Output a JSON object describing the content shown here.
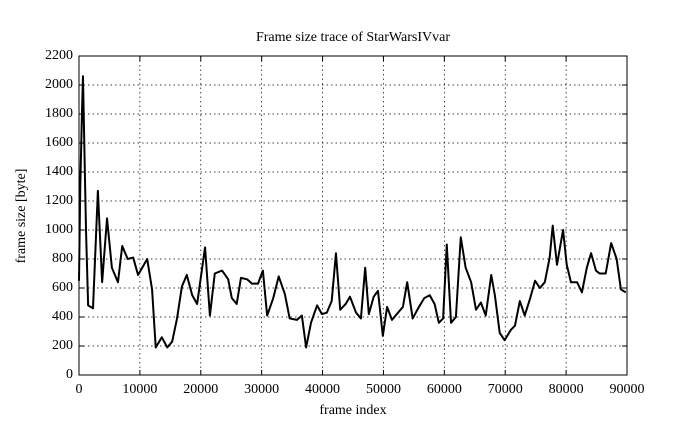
{
  "chart_data": {
    "type": "line",
    "title": "Frame size trace of StarWarsIVvar",
    "x_label": "frame index",
    "y_label": "frame size [byte]",
    "x": [
      0,
      200,
      500,
      650,
      1150,
      1500,
      2300,
      3100,
      3800,
      4600,
      5400,
      6400,
      7100,
      8000,
      8900,
      9700,
      11200,
      12000,
      12600,
      13600,
      14500,
      15300,
      16100,
      16900,
      17700,
      18600,
      19400,
      20700,
      21500,
      22300,
      23500,
      24500,
      25100,
      25900,
      26600,
      27600,
      28400,
      29400,
      30200,
      30900,
      31900,
      32800,
      33800,
      34600,
      35800,
      36600,
      37300,
      38100,
      39100,
      39900,
      40700,
      41500,
      42200,
      42900,
      43800,
      44500,
      45500,
      46300,
      47000,
      47600,
      48400,
      49100,
      49900,
      50600,
      51400,
      52400,
      53200,
      53900,
      54800,
      55700,
      56700,
      57600,
      58400,
      59100,
      59800,
      60400,
      61100,
      61900,
      62700,
      63500,
      64400,
      65200,
      66000,
      66800,
      67700,
      68300,
      69100,
      69900,
      70900,
      71600,
      72400,
      73200,
      74100,
      74900,
      75700,
      76500,
      77300,
      77800,
      78500,
      79500,
      80100,
      80800,
      81800,
      82600,
      83400,
      84100,
      84900,
      85500,
      86500,
      87400,
      88300,
      89000,
      89800
    ],
    "values": [
      650,
      1280,
      1830,
      2060,
      1000,
      480,
      460,
      1270,
      640,
      1080,
      740,
      640,
      890,
      800,
      810,
      690,
      800,
      590,
      190,
      260,
      190,
      230,
      390,
      610,
      690,
      550,
      490,
      880,
      410,
      700,
      720,
      660,
      530,
      490,
      670,
      660,
      630,
      630,
      720,
      410,
      530,
      680,
      560,
      390,
      380,
      410,
      190,
      360,
      480,
      420,
      430,
      510,
      840,
      450,
      490,
      540,
      430,
      390,
      740,
      420,
      540,
      580,
      270,
      470,
      380,
      430,
      470,
      640,
      390,
      460,
      530,
      550,
      490,
      360,
      390,
      900,
      360,
      400,
      950,
      740,
      640,
      450,
      500,
      410,
      690,
      550,
      290,
      240,
      310,
      340,
      510,
      410,
      530,
      650,
      600,
      640,
      810,
      1030,
      760,
      1000,
      760,
      640,
      640,
      570,
      740,
      840,
      720,
      700,
      700,
      910,
      800,
      590,
      570
    ],
    "color": "#000000",
    "xlim": [
      0,
      90000
    ],
    "xticks": [
      0,
      10000,
      20000,
      30000,
      40000,
      50000,
      60000,
      70000,
      80000,
      90000
    ],
    "ylim": [
      0,
      2200
    ],
    "yticks": [
      0,
      200,
      400,
      600,
      800,
      1000,
      1200,
      1400,
      1600,
      1800,
      2000,
      2200
    ],
    "grid": true
  }
}
